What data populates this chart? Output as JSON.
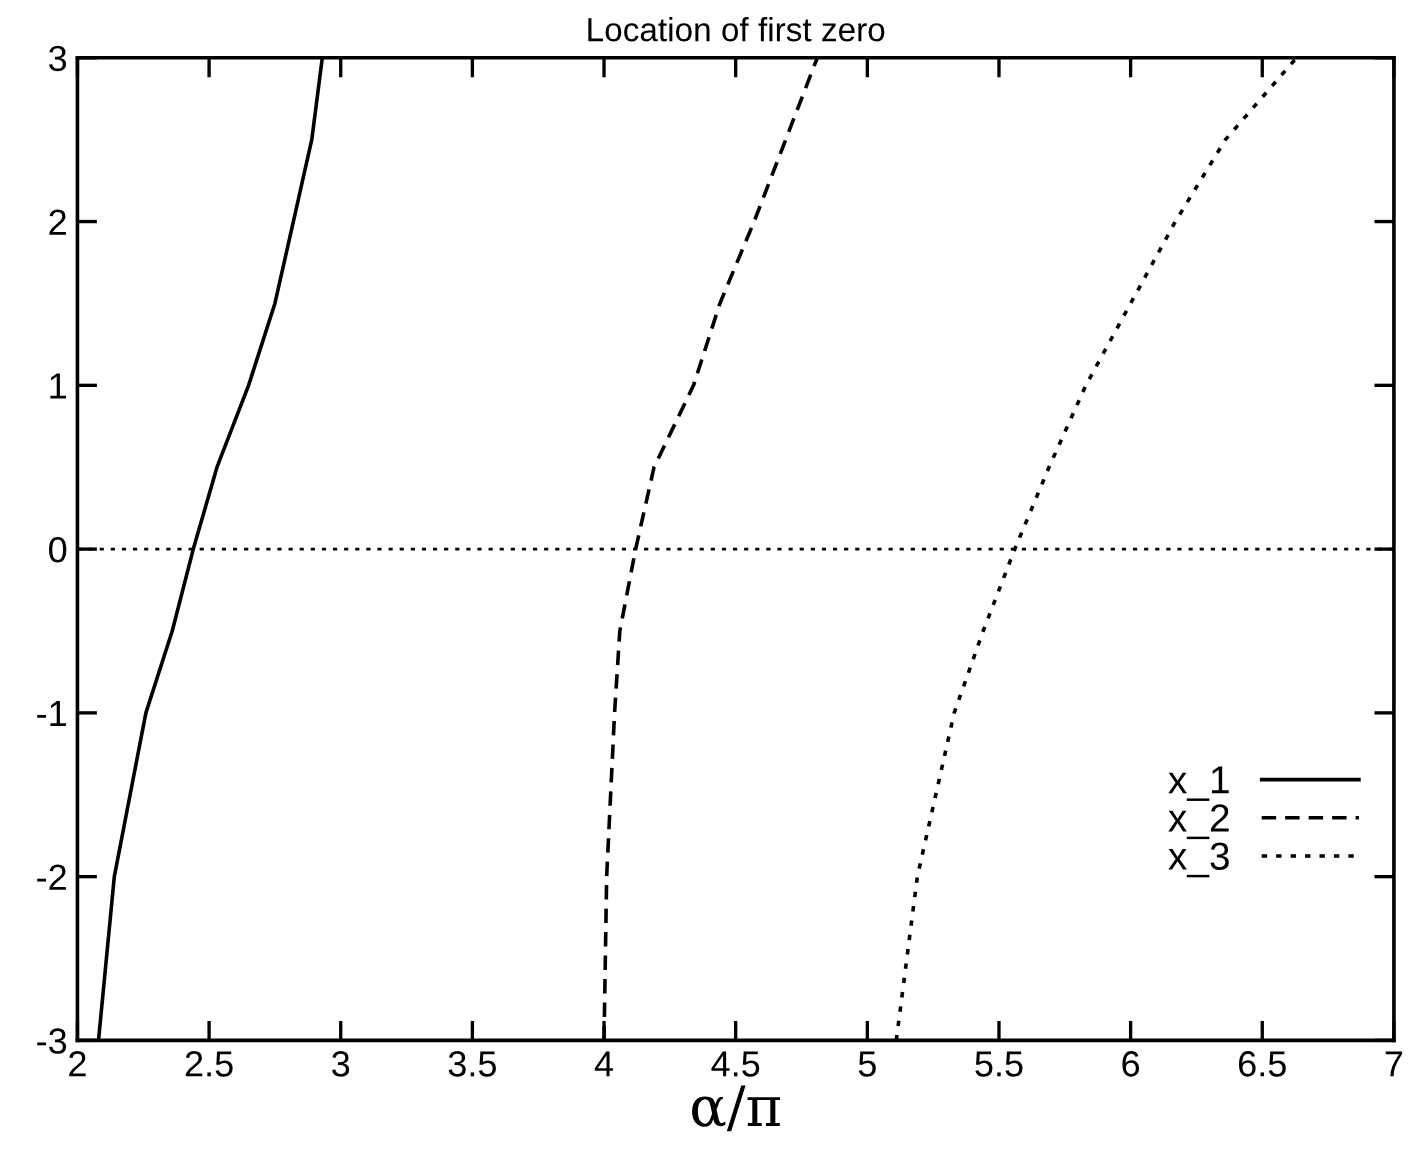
{
  "chart_data": {
    "type": "line",
    "title": "Location of first zero",
    "xlabel": "α/π",
    "xlim": [
      2,
      7
    ],
    "ylim": [
      -3,
      3
    ],
    "xticks": [
      2,
      2.5,
      3,
      3.5,
      4,
      4.5,
      5,
      5.5,
      6,
      6.5,
      7
    ],
    "yticks": [
      -3,
      -2,
      -1,
      0,
      1,
      2,
      3
    ],
    "grid": false,
    "legend": "bottom right",
    "marker": "none",
    "ref_lines": [
      {
        "axis": "y",
        "value": 0,
        "color": "#000000",
        "line_style": "dotted"
      }
    ],
    "series": [
      {
        "name": "x_1",
        "color": "#000000",
        "line_style": "solid",
        "x": [
          2.08,
          2.14,
          2.2,
          2.26,
          2.36,
          2.44,
          2.53,
          2.65,
          2.75,
          2.82,
          2.89,
          2.93
        ],
        "values": [
          -3,
          -2,
          -1.5,
          -1,
          -0.5,
          0,
          0.5,
          1,
          1.5,
          2,
          2.5,
          3
        ]
      },
      {
        "name": "x_2",
        "color": "#000000",
        "line_style": "dashed",
        "x": [
          4.0,
          4.01,
          4.04,
          4.06,
          4.12,
          4.19,
          4.34,
          4.44,
          4.57,
          4.69,
          4.81
        ],
        "values": [
          -3,
          -2,
          -1,
          -0.5,
          0,
          0.5,
          1,
          1.5,
          2,
          2.5,
          3
        ]
      },
      {
        "name": "x_3",
        "color": "#000000",
        "line_style": "dotted",
        "x": [
          5.11,
          5.15,
          5.19,
          5.26,
          5.33,
          5.44,
          5.56,
          5.69,
          5.83,
          6.0,
          6.17,
          6.36,
          6.63
        ],
        "values": [
          -3,
          -2.5,
          -2,
          -1.5,
          -1,
          -0.5,
          0,
          0.5,
          1,
          1.5,
          2,
          2.5,
          3
        ]
      }
    ]
  }
}
